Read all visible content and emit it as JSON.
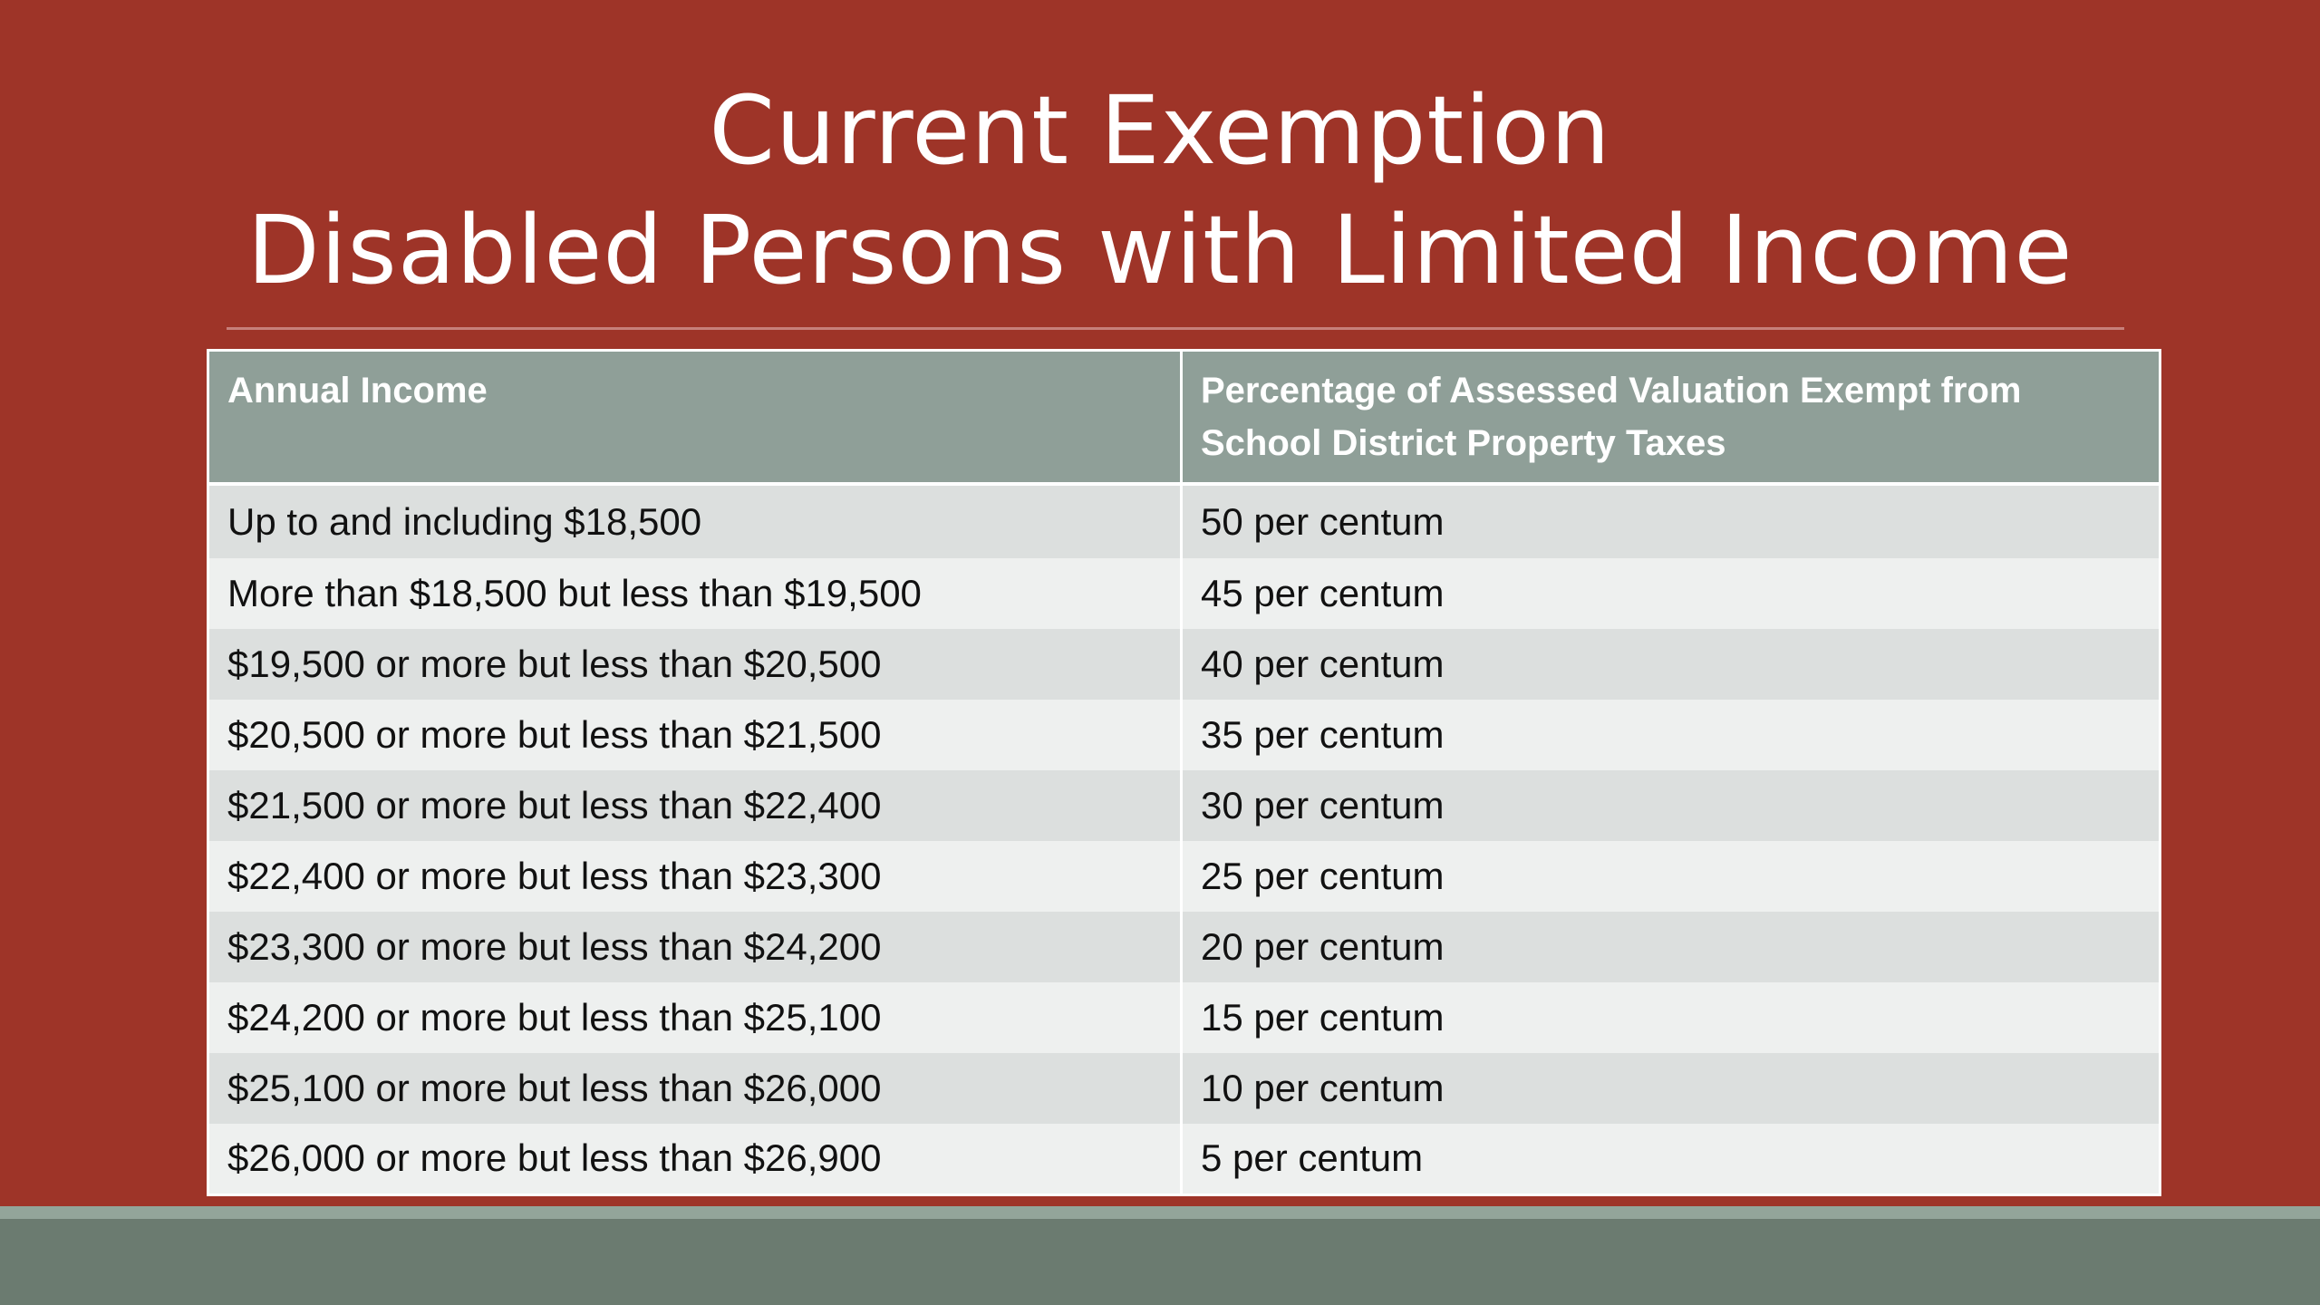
{
  "slide": {
    "title_line1": "Current Exemption",
    "title_line2": "Disabled Persons with Limited Income"
  },
  "table": {
    "headers": [
      "Annual Income",
      "Percentage of Assessed Valuation Exempt from School District Property Taxes"
    ],
    "rows": [
      [
        "Up to and including $18,500",
        "50 per centum"
      ],
      [
        "More than $18,500 but less than $19,500",
        "45 per centum"
      ],
      [
        "$19,500 or more but less than $20,500",
        "40 per centum"
      ],
      [
        "$20,500 or more but less than $21,500",
        "35 per centum"
      ],
      [
        "$21,500 or more but less than $22,400",
        "30 per centum"
      ],
      [
        "$22,400 or more but less than $23,300",
        "25 per centum"
      ],
      [
        "$23,300 or more but less than $24,200",
        "20 per centum"
      ],
      [
        "$24,200 or more but less than $25,100",
        "15 per centum"
      ],
      [
        "$25,100 or more but less than $26,000",
        "10 per centum"
      ],
      [
        "$26,000 or more but less than $26,900",
        "5 per centum"
      ]
    ]
  },
  "colors": {
    "background": "#9e3428",
    "header_fill": "#8f9f98",
    "row_odd": "#dcdfde",
    "row_even": "#eef0ef",
    "footer": "#6b7b70"
  }
}
